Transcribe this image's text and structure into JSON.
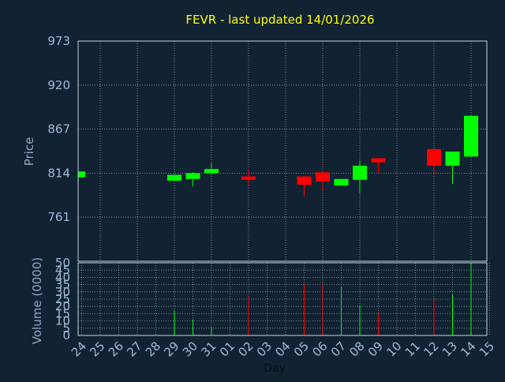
{
  "title": "FEVR - last updated 14/01/2026",
  "colors": {
    "background": "#112233",
    "title": "#ffff00",
    "axis_text": "#a0bcd8",
    "axis_label": "#8fa8c3",
    "grid": "#c8d4e0",
    "frame": "#c8d4e0",
    "up": "#00ff00",
    "down": "#ff0000"
  },
  "chart_data": [
    {
      "type": "candlestick",
      "ylabel": "Price",
      "ylim": [
        708,
        973
      ],
      "yticks": [
        973,
        920,
        867,
        814,
        761
      ],
      "grid": true,
      "candles": [
        {
          "day": "24",
          "open": 809,
          "close": 816,
          "high": 816,
          "low": 809
        },
        {
          "day": "29",
          "open": 805,
          "close": 812,
          "high": 812,
          "low": 805
        },
        {
          "day": "30",
          "open": 807,
          "close": 814,
          "high": 815,
          "low": 798
        },
        {
          "day": "31",
          "open": 814,
          "close": 819,
          "high": 826,
          "low": 812
        },
        {
          "day": "02",
          "open": 810,
          "close": 806,
          "high": 819,
          "low": 799
        },
        {
          "day": "05",
          "open": 810,
          "close": 800,
          "high": 810,
          "low": 786
        },
        {
          "day": "06",
          "open": 815,
          "close": 804,
          "high": 815,
          "low": 793
        },
        {
          "day": "07",
          "open": 799,
          "close": 807,
          "high": 807,
          "low": 799
        },
        {
          "day": "08",
          "open": 806,
          "close": 823,
          "high": 829,
          "low": 791
        },
        {
          "day": "09",
          "open": 832,
          "close": 827,
          "high": 832,
          "low": 814
        },
        {
          "day": "12",
          "open": 843,
          "close": 823,
          "high": 843,
          "low": 814
        },
        {
          "day": "13",
          "open": 823,
          "close": 840,
          "high": 840,
          "low": 801
        },
        {
          "day": "14",
          "open": 834,
          "close": 883,
          "high": 883,
          "low": 834
        }
      ]
    },
    {
      "type": "bar",
      "ylabel": "Volume (0000)",
      "xlabel": "Day",
      "ylim": [
        0,
        50
      ],
      "yticks": [
        0,
        5,
        10,
        15,
        20,
        25,
        30,
        35,
        40,
        45,
        50
      ],
      "categories": [
        "24",
        "25",
        "26",
        "27",
        "28",
        "29",
        "30",
        "31",
        "01",
        "02",
        "03",
        "04",
        "05",
        "06",
        "07",
        "08",
        "09",
        "10",
        "11",
        "12",
        "13",
        "14",
        "15"
      ],
      "values": [
        0,
        0,
        0,
        0,
        0,
        17,
        11,
        6,
        0,
        27,
        0,
        0,
        35,
        36,
        33,
        21,
        15,
        0,
        0,
        25,
        28,
        50,
        0
      ],
      "bar_colors": [
        "",
        "",
        "",
        "",
        "",
        "up",
        "up",
        "up",
        "",
        "down",
        "",
        "",
        "down",
        "down",
        "up",
        "up",
        "down",
        "",
        "",
        "down",
        "up",
        "up",
        ""
      ],
      "grid": true
    }
  ]
}
